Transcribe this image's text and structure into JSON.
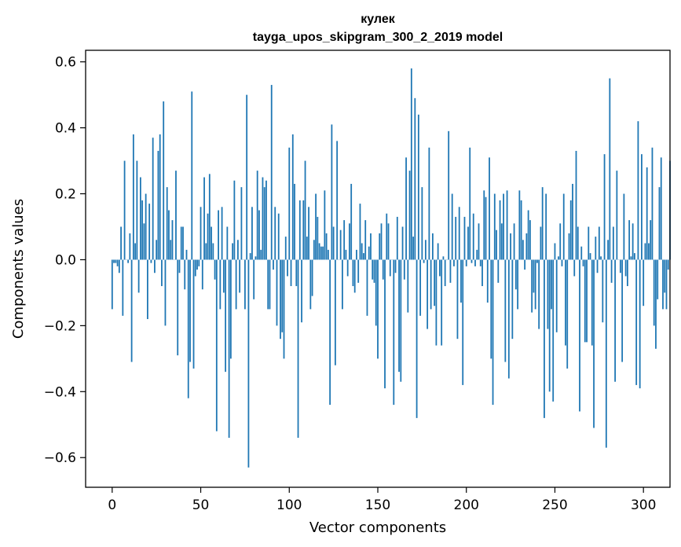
{
  "chart_data": {
    "type": "bar",
    "title": "кулек",
    "subtitle": "tayga_upos_skipgram_300_2_2019 model",
    "xlabel": "Vector components",
    "ylabel": "Components values",
    "xlim": [
      -15,
      315
    ],
    "ylim": [
      -0.69,
      0.635
    ],
    "xticks": [
      0,
      50,
      100,
      150,
      200,
      250,
      300
    ],
    "xtick_labels": [
      "0",
      "50",
      "100",
      "150",
      "200",
      "250",
      "300"
    ],
    "yticks": [
      -0.6,
      -0.4,
      -0.2,
      0.0,
      0.2,
      0.4,
      0.6
    ],
    "ytick_labels": [
      "−0.6",
      "−0.4",
      "−0.2",
      "0.0",
      "0.2",
      "0.4",
      "0.6"
    ],
    "grid": false,
    "bar_color": "#1f77b4",
    "values": [
      -0.15,
      -0.01,
      -0.01,
      -0.02,
      -0.04,
      0.1,
      -0.17,
      0.3,
      0.0,
      -0.01,
      0.08,
      -0.31,
      0.38,
      0.05,
      0.3,
      -0.1,
      0.25,
      0.18,
      0.11,
      0.2,
      -0.18,
      0.17,
      -0.01,
      0.37,
      -0.04,
      0.06,
      0.33,
      0.38,
      -0.08,
      0.48,
      -0.2,
      0.22,
      0.15,
      0.06,
      0.12,
      0.0,
      0.27,
      -0.29,
      -0.04,
      0.1,
      0.1,
      -0.09,
      0.03,
      -0.42,
      -0.31,
      0.51,
      -0.33,
      -0.05,
      -0.03,
      -0.02,
      0.16,
      -0.09,
      0.25,
      0.05,
      0.14,
      0.26,
      0.1,
      0.05,
      -0.06,
      -0.52,
      0.15,
      -0.15,
      0.16,
      -0.1,
      -0.34,
      0.1,
      -0.54,
      -0.3,
      0.05,
      0.24,
      -0.15,
      0.06,
      -0.1,
      0.22,
      0.0,
      -0.15,
      0.5,
      -0.63,
      0.02,
      0.16,
      -0.12,
      0.01,
      0.27,
      0.15,
      0.03,
      0.25,
      0.22,
      0.24,
      -0.15,
      -0.15,
      0.53,
      -0.03,
      0.16,
      -0.2,
      0.14,
      -0.24,
      -0.22,
      -0.3,
      0.07,
      -0.05,
      0.34,
      -0.08,
      0.38,
      0.23,
      -0.08,
      -0.54,
      0.18,
      -0.19,
      0.18,
      0.3,
      0.07,
      0.16,
      -0.15,
      -0.11,
      0.06,
      0.2,
      0.13,
      0.05,
      0.04,
      0.04,
      0.21,
      0.08,
      0.03,
      -0.44,
      0.41,
      0.1,
      -0.32,
      0.36,
      0.0,
      0.09,
      -0.15,
      0.12,
      0.03,
      -0.05,
      0.11,
      0.23,
      -0.08,
      -0.1,
      0.03,
      -0.07,
      0.17,
      0.05,
      0.02,
      0.12,
      -0.17,
      0.04,
      0.08,
      -0.06,
      -0.07,
      -0.2,
      -0.3,
      0.08,
      0.11,
      -0.06,
      -0.39,
      0.14,
      0.11,
      -0.05,
      0.0,
      -0.44,
      -0.04,
      0.13,
      -0.34,
      -0.37,
      0.1,
      -0.06,
      0.31,
      -0.16,
      0.27,
      0.58,
      0.07,
      0.49,
      -0.48,
      0.44,
      -0.17,
      0.22,
      -0.01,
      0.06,
      -0.21,
      0.34,
      -0.15,
      0.08,
      -0.14,
      -0.26,
      0.05,
      -0.05,
      -0.26,
      0.01,
      -0.08,
      0.0,
      0.39,
      -0.07,
      0.2,
      -0.02,
      0.13,
      -0.24,
      0.16,
      -0.13,
      -0.38,
      0.13,
      -0.02,
      0.1,
      0.34,
      -0.01,
      0.14,
      -0.02,
      0.03,
      0.11,
      -0.02,
      -0.08,
      0.21,
      0.19,
      -0.13,
      0.31,
      -0.3,
      -0.44,
      0.2,
      0.09,
      -0.07,
      0.18,
      0.11,
      0.2,
      -0.31,
      0.21,
      -0.36,
      0.08,
      -0.24,
      0.11,
      -0.09,
      -0.15,
      0.21,
      0.18,
      0.06,
      -0.03,
      0.08,
      0.15,
      0.12,
      -0.16,
      -0.1,
      -0.15,
      -0.01,
      -0.21,
      0.1,
      0.22,
      -0.48,
      0.2,
      -0.21,
      -0.4,
      -0.15,
      -0.43,
      0.05,
      -0.22,
      0.01,
      0.11,
      -0.02,
      0.2,
      -0.26,
      -0.33,
      0.08,
      0.18,
      0.23,
      -0.05,
      0.33,
      0.1,
      -0.46,
      0.04,
      -0.02,
      -0.25,
      -0.25,
      0.1,
      0.02,
      -0.26,
      -0.51,
      0.07,
      -0.04,
      0.1,
      0.01,
      -0.19,
      0.32,
      -0.57,
      0.06,
      0.55,
      -0.07,
      0.1,
      -0.37,
      0.27,
      0.0,
      -0.04,
      -0.31,
      0.2,
      -0.05,
      -0.08,
      0.12,
      0.01,
      0.11,
      0.02,
      -0.38,
      0.42,
      -0.39,
      0.32,
      -0.14,
      0.05,
      0.28,
      0.05,
      0.12,
      0.34,
      -0.2,
      -0.27,
      -0.12,
      0.22,
      0.31,
      -0.15,
      -0.1,
      -0.15,
      -0.03,
      0.3
    ]
  }
}
